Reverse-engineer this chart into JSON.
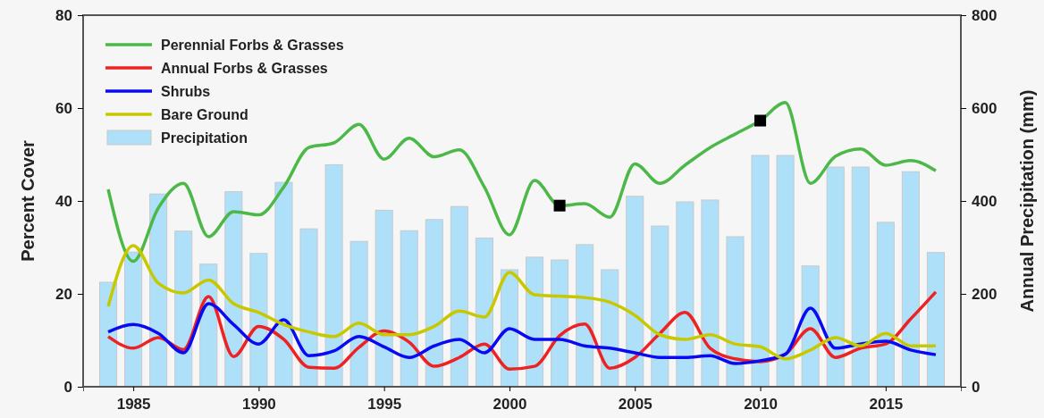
{
  "chart_data": {
    "type": "line",
    "xlabel": null,
    "ylabel": "Percent Cover",
    "y2label": "Annual Precipitation (mm)",
    "x": [
      1984,
      1985,
      1986,
      1987,
      1988,
      1989,
      1990,
      1991,
      1992,
      1993,
      1994,
      1995,
      1996,
      1997,
      1998,
      1999,
      2000,
      2001,
      2002,
      2003,
      2004,
      2005,
      2006,
      2007,
      2008,
      2009,
      2010,
      2011,
      2012,
      2013,
      2014,
      2015,
      2016,
      2017
    ],
    "xlim": [
      1983,
      2018
    ],
    "xticks": [
      1985,
      1990,
      1995,
      2000,
      2005,
      2010,
      2015
    ],
    "ylim": [
      0,
      80
    ],
    "yticks": [
      0,
      20,
      40,
      60,
      80
    ],
    "y2lim": [
      0,
      800
    ],
    "y2ticks": [
      0,
      200,
      400,
      600,
      800
    ],
    "grid": false,
    "legend": "top left",
    "series": [
      {
        "name": "Perennial Forbs & Grasses",
        "color": "#4cb848",
        "values": [
          42.5,
          27,
          38.5,
          43.8,
          32.3,
          37.7,
          37,
          43,
          51.5,
          52.5,
          56.5,
          49,
          53.5,
          49.5,
          51,
          43,
          32.7,
          44.4,
          39,
          39.4,
          36.5,
          48,
          43.8,
          47.7,
          51.5,
          54.4,
          57.3,
          61.2,
          43.8,
          49.6,
          51.2,
          47.7,
          48.7,
          46.5
        ]
      },
      {
        "name": "Annual Forbs & Grasses",
        "color": "#ee2222",
        "values": [
          10.8,
          8.3,
          10.6,
          8,
          19.4,
          6.5,
          13,
          10.2,
          4.2,
          4,
          8.5,
          12,
          9.6,
          4.4,
          6.3,
          9.2,
          3.8,
          4.4,
          11,
          13.5,
          4,
          6.3,
          11.5,
          16,
          8.3,
          6,
          5.4,
          7,
          12.5,
          6.3,
          8.3,
          9.2,
          14.6,
          20.4
        ]
      },
      {
        "name": "Shrubs",
        "color": "#0a0af0",
        "values": [
          11.8,
          13.4,
          11.5,
          7.3,
          17.9,
          13.4,
          9.2,
          14.4,
          6.7,
          7.7,
          10.8,
          8.6,
          6.3,
          8.8,
          10.2,
          7.3,
          12.5,
          10.2,
          10.2,
          8.8,
          8.3,
          7.3,
          6.3,
          6.3,
          6.7,
          5,
          5.6,
          7,
          16.9,
          8.3,
          9.2,
          9.8,
          7.9,
          6.9
        ]
      },
      {
        "name": "Bare Ground",
        "color": "#c8c800",
        "values": [
          17.3,
          30.4,
          22.3,
          20.2,
          23,
          17.9,
          16,
          13.4,
          11.8,
          10.8,
          13.7,
          11.2,
          11.2,
          13,
          16.3,
          15,
          24.6,
          19.8,
          19.5,
          19.2,
          18.2,
          15.4,
          11.2,
          10.2,
          11.2,
          9.2,
          8.6,
          6,
          7.9,
          10.6,
          8.8,
          11.5,
          8.8,
          8.8
        ]
      },
      {
        "name": "Precipitation",
        "type": "bar",
        "axis": "y2",
        "color": "#aee0fa",
        "values": [
          225,
          290,
          415,
          335,
          264,
          420,
          287,
          440,
          340,
          478,
          313,
          380,
          336,
          360,
          388,
          320,
          252,
          279,
          273,
          306,
          252,
          410,
          346,
          398,
          402,
          323,
          498,
          498,
          260,
          473,
          473,
          354,
          463,
          289
        ]
      },
      {
        "type": "scatter",
        "marker": "square",
        "color": "#000000",
        "x": [
          2002,
          2010
        ],
        "values": [
          39,
          57.3
        ]
      }
    ]
  }
}
